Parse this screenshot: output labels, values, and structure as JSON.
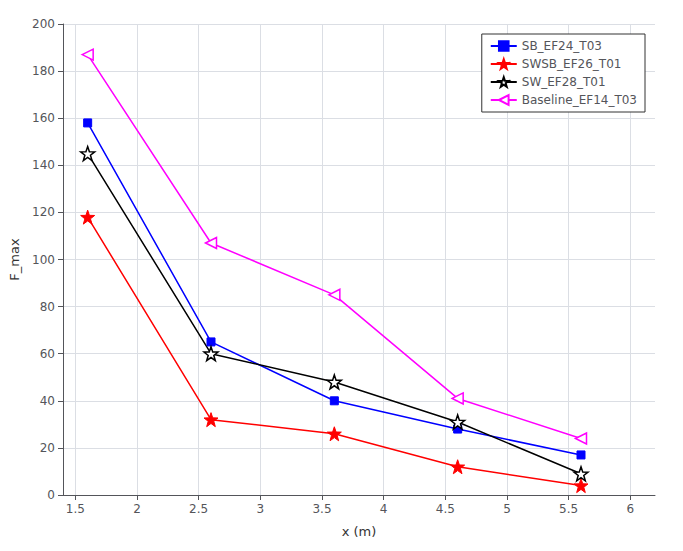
{
  "chart_data": {
    "type": "line",
    "x": [
      1.6,
      2.6,
      3.6,
      4.6,
      5.6
    ],
    "series": [
      {
        "name": "SB_EF24_T03",
        "color": "#0000ff",
        "marker": "square",
        "values": [
          158,
          65,
          40,
          28,
          17
        ]
      },
      {
        "name": "SWSB_EF26_T01",
        "color": "#ff0000",
        "marker": "star",
        "values": [
          118,
          32,
          26,
          12,
          4
        ]
      },
      {
        "name": "SW_EF28_T01",
        "color": "#000000",
        "marker": "star-open",
        "values": [
          145,
          60,
          48,
          31,
          9
        ]
      },
      {
        "name": "Baseline_EF14_T03",
        "color": "#ff00ff",
        "marker": "triangle-left-open",
        "values": [
          187,
          107,
          85,
          41,
          24
        ]
      }
    ],
    "xlabel": "x (m)",
    "ylabel": "F_max",
    "xlim": [
      1.4,
      6.2
    ],
    "ylim": [
      0,
      200
    ],
    "xticks": [
      1.5,
      2,
      2.5,
      3,
      3.5,
      4,
      4.5,
      5,
      5.5,
      6
    ],
    "yticks": [
      0,
      20,
      40,
      60,
      80,
      100,
      120,
      140,
      160,
      180,
      200
    ],
    "grid": true,
    "legend": "upper right"
  }
}
